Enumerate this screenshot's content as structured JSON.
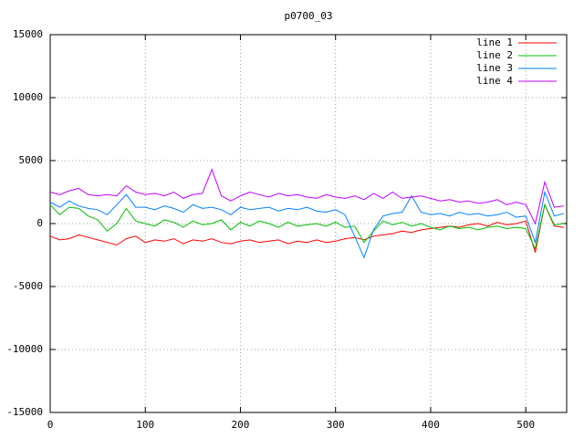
{
  "chart_data": {
    "type": "line",
    "title": "p0700_03",
    "x": [
      0,
      10,
      20,
      30,
      40,
      50,
      60,
      70,
      80,
      90,
      100,
      110,
      120,
      130,
      140,
      150,
      160,
      170,
      180,
      190,
      200,
      210,
      220,
      230,
      240,
      250,
      260,
      270,
      280,
      290,
      300,
      310,
      320,
      330,
      340,
      350,
      360,
      370,
      380,
      390,
      400,
      410,
      420,
      430,
      440,
      450,
      460,
      470,
      480,
      490,
      500,
      510,
      520,
      530,
      540
    ],
    "series": [
      {
        "name": "line 1",
        "color": "#ff0000",
        "values": [
          -1000,
          -1300,
          -1200,
          -900,
          -1100,
          -1300,
          -1500,
          -1700,
          -1200,
          -1000,
          -1500,
          -1300,
          -1400,
          -1200,
          -1600,
          -1300,
          -1400,
          -1200,
          -1500,
          -1600,
          -1400,
          -1300,
          -1500,
          -1400,
          -1300,
          -1600,
          -1400,
          -1500,
          -1300,
          -1500,
          -1400,
          -1200,
          -1100,
          -1300,
          -1000,
          -900,
          -800,
          -600,
          -700,
          -500,
          -400,
          -300,
          -200,
          -300,
          -100,
          0,
          -200,
          100,
          -100,
          0,
          200,
          -2300,
          1500,
          -200,
          -300
        ]
      },
      {
        "name": "line 2",
        "color": "#00c000",
        "values": [
          1500,
          700,
          1300,
          1200,
          600,
          300,
          -600,
          0,
          1200,
          200,
          0,
          -200,
          300,
          100,
          -300,
          200,
          -100,
          0,
          300,
          -500,
          100,
          -200,
          200,
          0,
          -300,
          100,
          -200,
          -100,
          0,
          -200,
          100,
          -300,
          -200,
          -1500,
          -600,
          200,
          -100,
          100,
          -200,
          0,
          -300,
          -500,
          -200,
          -400,
          -300,
          -500,
          -300,
          -200,
          -400,
          -300,
          -400,
          -2000,
          1500,
          -100,
          0
        ]
      },
      {
        "name": "line 3",
        "color": "#0080ff",
        "values": [
          1700,
          1300,
          1800,
          1400,
          1200,
          1100,
          700,
          1500,
          2300,
          1300,
          1300,
          1100,
          1400,
          1200,
          900,
          1500,
          1200,
          1300,
          1100,
          700,
          1300,
          1100,
          1200,
          1300,
          1000,
          1200,
          1100,
          1300,
          1000,
          900,
          1100,
          700,
          -1000,
          -2700,
          -500,
          600,
          800,
          900,
          2200,
          900,
          700,
          800,
          600,
          900,
          700,
          800,
          600,
          700,
          900,
          500,
          600,
          -1500,
          2500,
          600,
          800
        ]
      },
      {
        "name": "line 4",
        "color": "#c000ff",
        "values": [
          2500,
          2300,
          2600,
          2800,
          2300,
          2200,
          2300,
          2200,
          3000,
          2500,
          2300,
          2400,
          2200,
          2500,
          2000,
          2300,
          2400,
          4300,
          2200,
          1800,
          2200,
          2500,
          2300,
          2100,
          2400,
          2200,
          2300,
          2100,
          2000,
          2300,
          2100,
          2000,
          2200,
          1900,
          2400,
          2000,
          2500,
          2000,
          2100,
          2200,
          2000,
          1800,
          1900,
          1700,
          1800,
          1600,
          1700,
          1900,
          1500,
          1700,
          1500,
          0,
          3300,
          1300,
          1400
        ]
      }
    ],
    "xlim": [
      0,
      543
    ],
    "xticks": [
      0,
      100,
      200,
      300,
      400,
      500
    ],
    "ylim": [
      -15000,
      15000
    ],
    "yticks": [
      -15000,
      -10000,
      -5000,
      0,
      5000,
      10000,
      15000
    ],
    "grid": true,
    "legend": "top-right"
  }
}
